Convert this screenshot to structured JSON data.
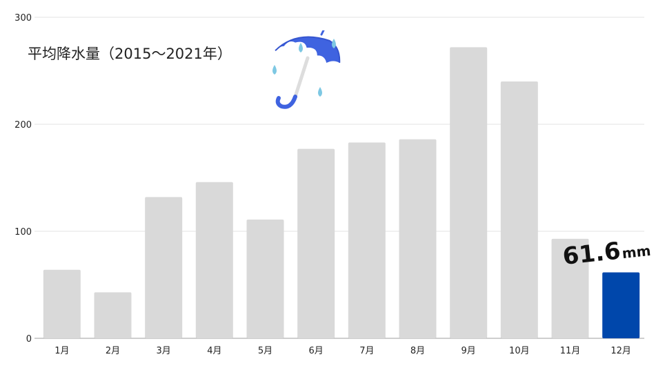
{
  "title": "平均降水量（2015〜2021年）",
  "callout": {
    "value": "61.6",
    "unit": "mm"
  },
  "colors": {
    "bar": "#d9d9d9",
    "highlight": "#0047ab",
    "grid": "#e3e3e3",
    "axis": "#9e9e9e",
    "text": "#222222"
  },
  "icon": "umbrella-rain-icon",
  "chart_data": {
    "type": "bar",
    "title": "平均降水量（2015〜2021年）",
    "xlabel": "",
    "ylabel": "",
    "categories": [
      "1月",
      "2月",
      "3月",
      "4月",
      "5月",
      "6月",
      "7月",
      "8月",
      "9月",
      "10月",
      "11月",
      "12月"
    ],
    "values": [
      64,
      43,
      132,
      146,
      111,
      177,
      183,
      186,
      272,
      240,
      93,
      61.6
    ],
    "highlight_index": 11,
    "ylim": [
      0,
      300
    ],
    "yticks": [
      0,
      100,
      200,
      300
    ],
    "grid": true,
    "legend": "none"
  }
}
